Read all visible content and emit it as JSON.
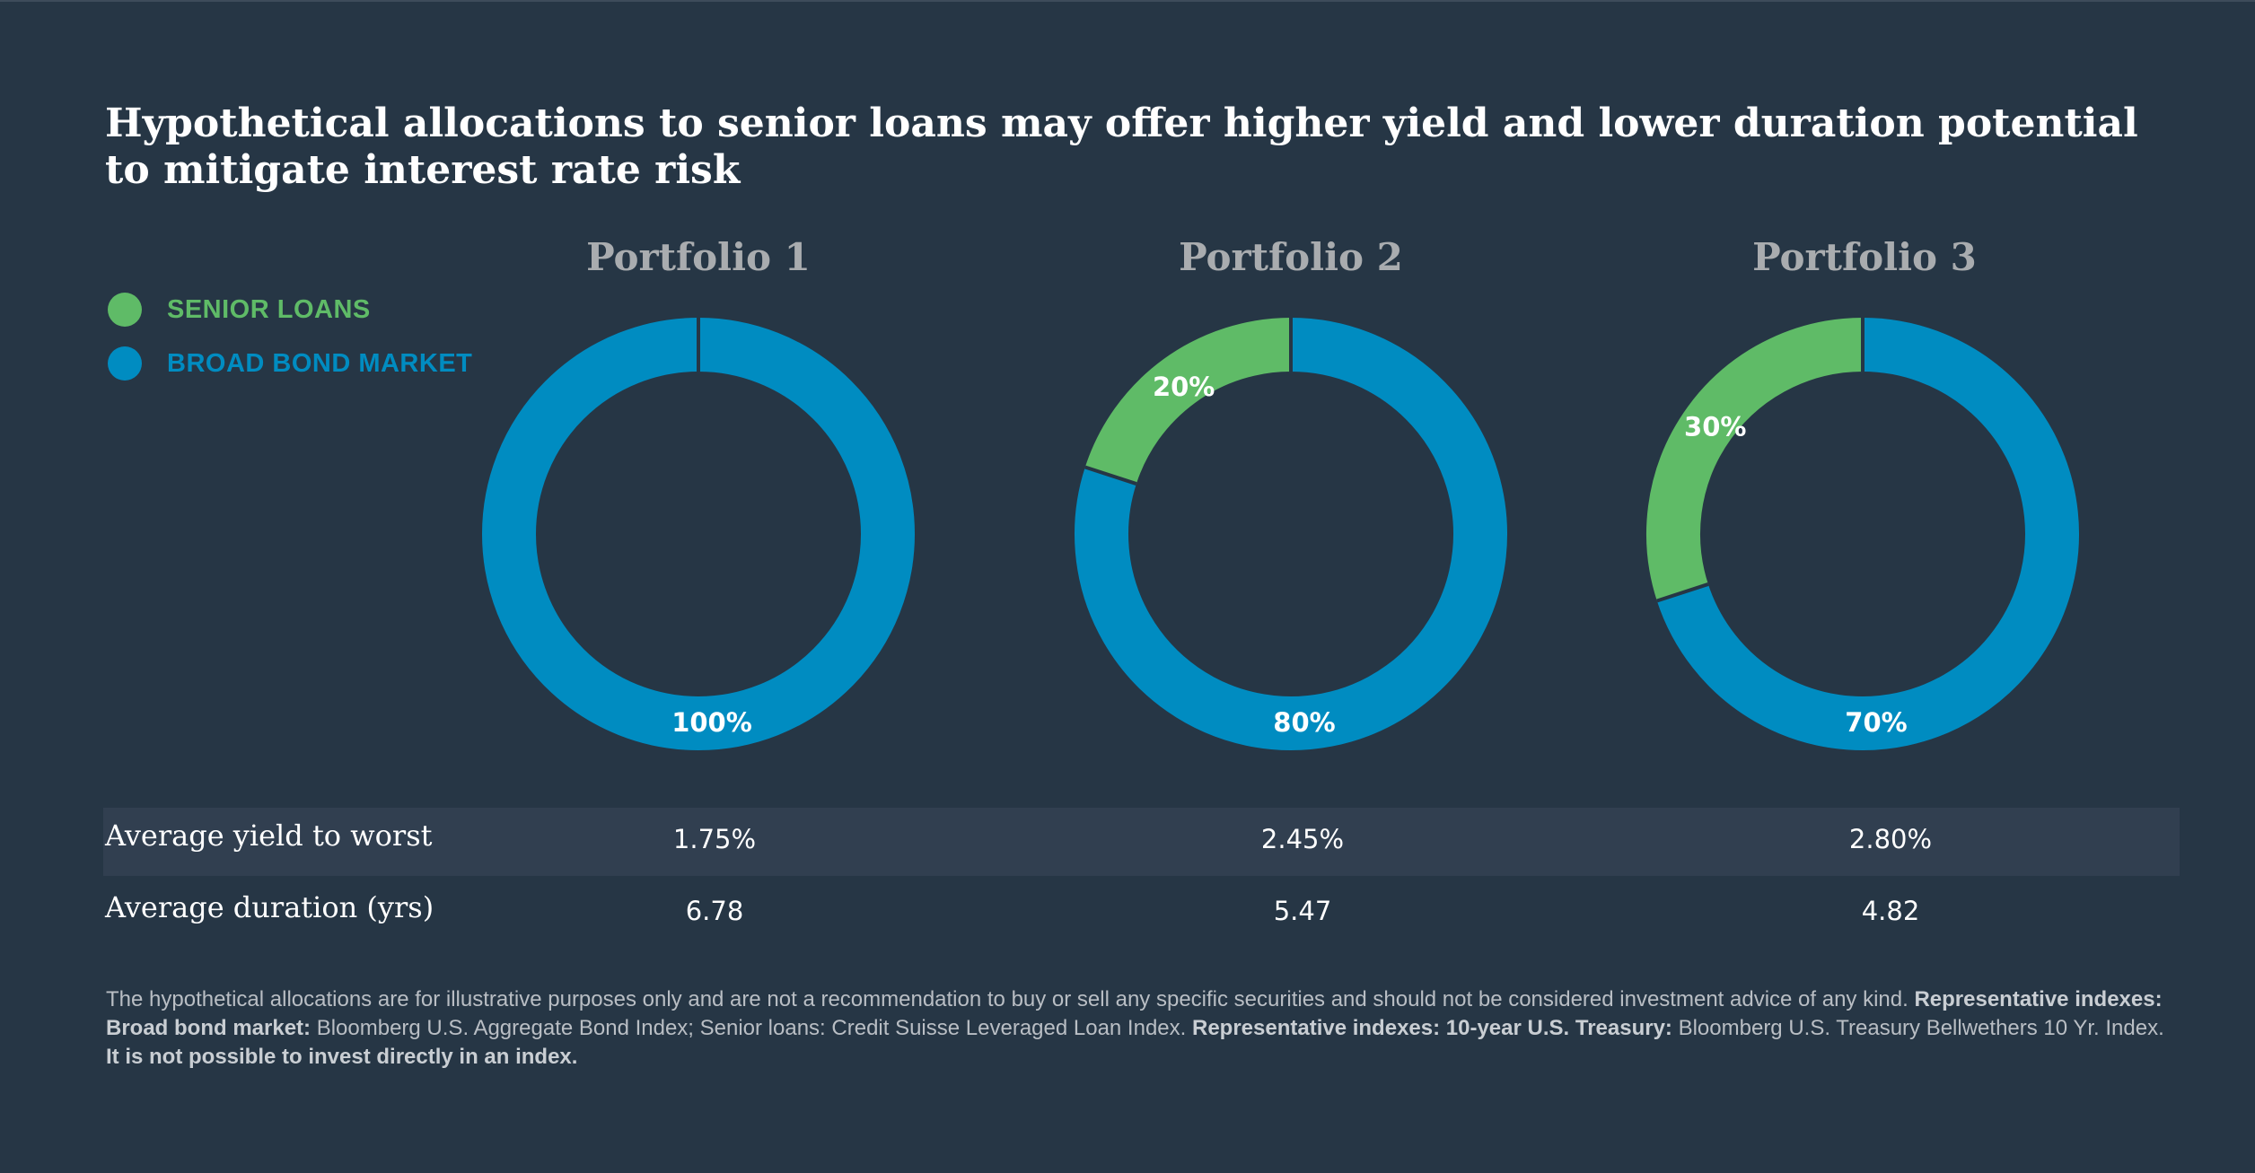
{
  "title": "Hypothetical allocations to senior loans may offer higher yield and lower duration potential to mitigate interest rate risk",
  "colors": {
    "background": "#263645",
    "senior_loans": "#5fbb67",
    "broad_bond_market": "#008cc1",
    "row_shade": "#313f50"
  },
  "legend": [
    {
      "label": "SENIOR LOANS",
      "color": "#5fbb67"
    },
    {
      "label": "BROAD BOND MARKET",
      "color": "#008cc1"
    }
  ],
  "chart_data": {
    "type": "pie",
    "variant": "donut",
    "series_names": [
      "Senior loans",
      "Broad bond market"
    ],
    "charts": [
      {
        "title": "Portfolio 1",
        "slices": [
          {
            "name": "Senior loans",
            "value": 0,
            "label": ""
          },
          {
            "name": "Broad bond market",
            "value": 100,
            "label": "100%"
          }
        ]
      },
      {
        "title": "Portfolio 2",
        "slices": [
          {
            "name": "Senior loans",
            "value": 20,
            "label": "20%"
          },
          {
            "name": "Broad bond market",
            "value": 80,
            "label": "80%"
          }
        ]
      },
      {
        "title": "Portfolio 3",
        "slices": [
          {
            "name": "Senior loans",
            "value": 30,
            "label": "30%"
          },
          {
            "name": "Broad bond market",
            "value": 70,
            "label": "70%"
          }
        ]
      }
    ]
  },
  "table": {
    "rows": [
      {
        "label": "Average yield to worst",
        "values": [
          "1.75%",
          "2.45%",
          "2.80%"
        ]
      },
      {
        "label": "Average duration (yrs)",
        "values": [
          "6.78",
          "5.47",
          "4.82"
        ]
      }
    ]
  },
  "footnote": {
    "p1": "The hypothetical allocations are for illustrative purposes only and are not a recommendation to buy or sell any specific securities and should not be considered investment advice of any kind. ",
    "b1": "Representative indexes: Broad bond market:",
    "p2": " Bloomberg U.S. Aggregate Bond Index; Senior loans: Credit Suisse Leveraged Loan Index. ",
    "b2": "Representative indexes: 10-year U.S. Treasury:",
    "p3": " Bloomberg U.S. Treasury Bellwethers 10 Yr. Index. ",
    "b3": "It is not possible to invest directly in an index."
  }
}
